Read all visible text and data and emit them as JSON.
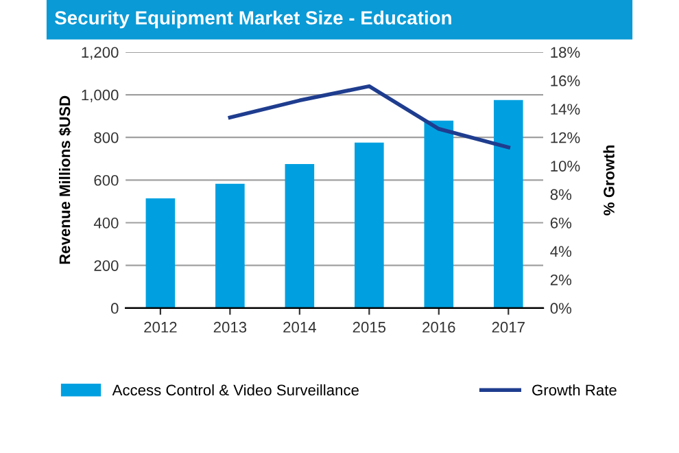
{
  "chart_data": {
    "type": "bar",
    "title": "Security Equipment Market Size - Education",
    "categories": [
      "2012",
      "2013",
      "2014",
      "2015",
      "2016",
      "2017"
    ],
    "series": [
      {
        "name": "Access Control & Video Surveillance",
        "color": "#00a0e0",
        "values": [
          514,
          583,
          675,
          776,
          879,
          975
        ]
      },
      {
        "name": "Growth Rate",
        "type": "line",
        "axis": "y2",
        "color": "#1f3d8f",
        "values": [
          null,
          13.4,
          14.6,
          15.6,
          12.6,
          11.3
        ]
      }
    ],
    "ylabel": "Revenue Millions $USD",
    "y2label": "% Growth",
    "ylim": [
      0,
      1200
    ],
    "yticks": [
      0,
      200,
      400,
      600,
      800,
      {
        "value": 1000,
        "label": "1,000"
      },
      {
        "value": 1200,
        "label": "1,200"
      }
    ],
    "y2lim": [
      0,
      18
    ],
    "y2ticks": [
      {
        "value": 0,
        "label": "0%"
      },
      {
        "value": 2,
        "label": "2%"
      },
      {
        "value": 4,
        "label": "4%"
      },
      {
        "value": 6,
        "label": "6%"
      },
      {
        "value": 8,
        "label": "8%"
      },
      {
        "value": 10,
        "label": "10%"
      },
      {
        "value": 12,
        "label": "12%"
      },
      {
        "value": 14,
        "label": "14%"
      },
      {
        "value": 16,
        "label": "16%"
      },
      {
        "value": 18,
        "label": "18%"
      }
    ],
    "grid": "y",
    "legend": "bottom"
  }
}
